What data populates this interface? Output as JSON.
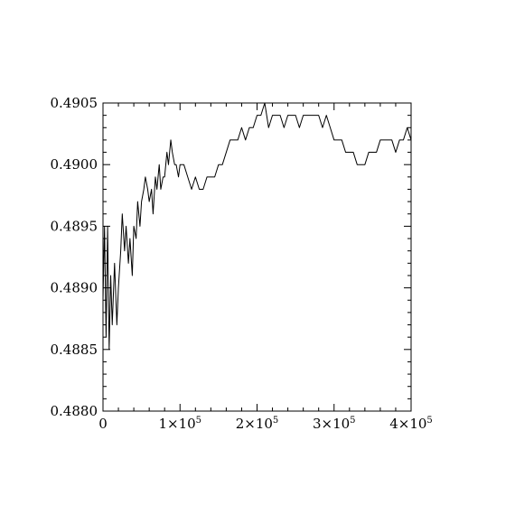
{
  "chart_data": {
    "type": "line",
    "title": "",
    "xlabel": "",
    "ylabel": "",
    "xlim": [
      0,
      400000
    ],
    "ylim": [
      0.488,
      0.4905
    ],
    "grid": false,
    "legend": "none",
    "line_color": "#000000",
    "x_ticks": [
      {
        "value": 0,
        "label": "0"
      },
      {
        "value": 100000,
        "label": "1×10",
        "sup": "5"
      },
      {
        "value": 200000,
        "label": "2×10",
        "sup": "5"
      },
      {
        "value": 300000,
        "label": "3×10",
        "sup": "5"
      },
      {
        "value": 400000,
        "label": "4×10",
        "sup": "5"
      }
    ],
    "y_ticks": [
      {
        "value": 0.488,
        "label": "0.4880"
      },
      {
        "value": 0.4885,
        "label": "0.4885"
      },
      {
        "value": 0.489,
        "label": "0.4890"
      },
      {
        "value": 0.4895,
        "label": "0.4895"
      },
      {
        "value": 0.49,
        "label": "0.4900"
      },
      {
        "value": 0.4905,
        "label": "0.4905"
      }
    ],
    "series": [
      {
        "x": [
          0,
          2000,
          4000,
          6000,
          8000,
          10000,
          12000,
          15000,
          18000,
          20000,
          23000,
          25000,
          28000,
          30000,
          33000,
          35000,
          38000,
          40000,
          43000,
          45000,
          48000,
          50000,
          53000,
          55000,
          58000,
          60000,
          63000,
          65000,
          68000,
          70000,
          73000,
          75000,
          78000,
          80000,
          83000,
          85000,
          88000,
          90000,
          93000,
          95000,
          98000,
          100000,
          105000,
          110000,
          115000,
          120000,
          125000,
          130000,
          135000,
          140000,
          145000,
          150000,
          155000,
          160000,
          165000,
          170000,
          175000,
          180000,
          185000,
          190000,
          195000,
          200000,
          205000,
          210000,
          215000,
          220000,
          225000,
          230000,
          235000,
          240000,
          245000,
          250000,
          255000,
          260000,
          265000,
          270000,
          275000,
          280000,
          285000,
          290000,
          295000,
          300000,
          305000,
          310000,
          315000,
          320000,
          325000,
          330000,
          335000,
          340000,
          345000,
          350000,
          355000,
          360000,
          365000,
          370000,
          375000,
          380000,
          385000,
          390000,
          395000,
          400000
        ],
        "values": [
          0.4889,
          0.4895,
          0.4886,
          0.4895,
          0.4885,
          0.4891,
          0.4887,
          0.4892,
          0.4887,
          0.489,
          0.4893,
          0.4896,
          0.4893,
          0.4895,
          0.4892,
          0.4894,
          0.4891,
          0.4895,
          0.4894,
          0.4897,
          0.4895,
          0.4897,
          0.4898,
          0.4899,
          0.4898,
          0.4897,
          0.4898,
          0.4896,
          0.4899,
          0.4898,
          0.49,
          0.4898,
          0.4899,
          0.4899,
          0.4901,
          0.49,
          0.4902,
          0.4901,
          0.49,
          0.49,
          0.4899,
          0.49,
          0.49,
          0.4899,
          0.4898,
          0.4899,
          0.4898,
          0.4898,
          0.4899,
          0.4899,
          0.4899,
          0.49,
          0.49,
          0.4901,
          0.4902,
          0.4902,
          0.4902,
          0.4903,
          0.4902,
          0.4903,
          0.4903,
          0.4904,
          0.4904,
          0.4905,
          0.4903,
          0.4904,
          0.4904,
          0.4904,
          0.4903,
          0.4904,
          0.4904,
          0.4904,
          0.4903,
          0.4904,
          0.4904,
          0.4904,
          0.4904,
          0.4904,
          0.4903,
          0.4904,
          0.4903,
          0.4902,
          0.4902,
          0.4902,
          0.4901,
          0.4901,
          0.4901,
          0.49,
          0.49,
          0.49,
          0.4901,
          0.4901,
          0.4901,
          0.4902,
          0.4902,
          0.4902,
          0.4902,
          0.4901,
          0.4902,
          0.4902,
          0.4903,
          0.4902
        ]
      }
    ]
  }
}
